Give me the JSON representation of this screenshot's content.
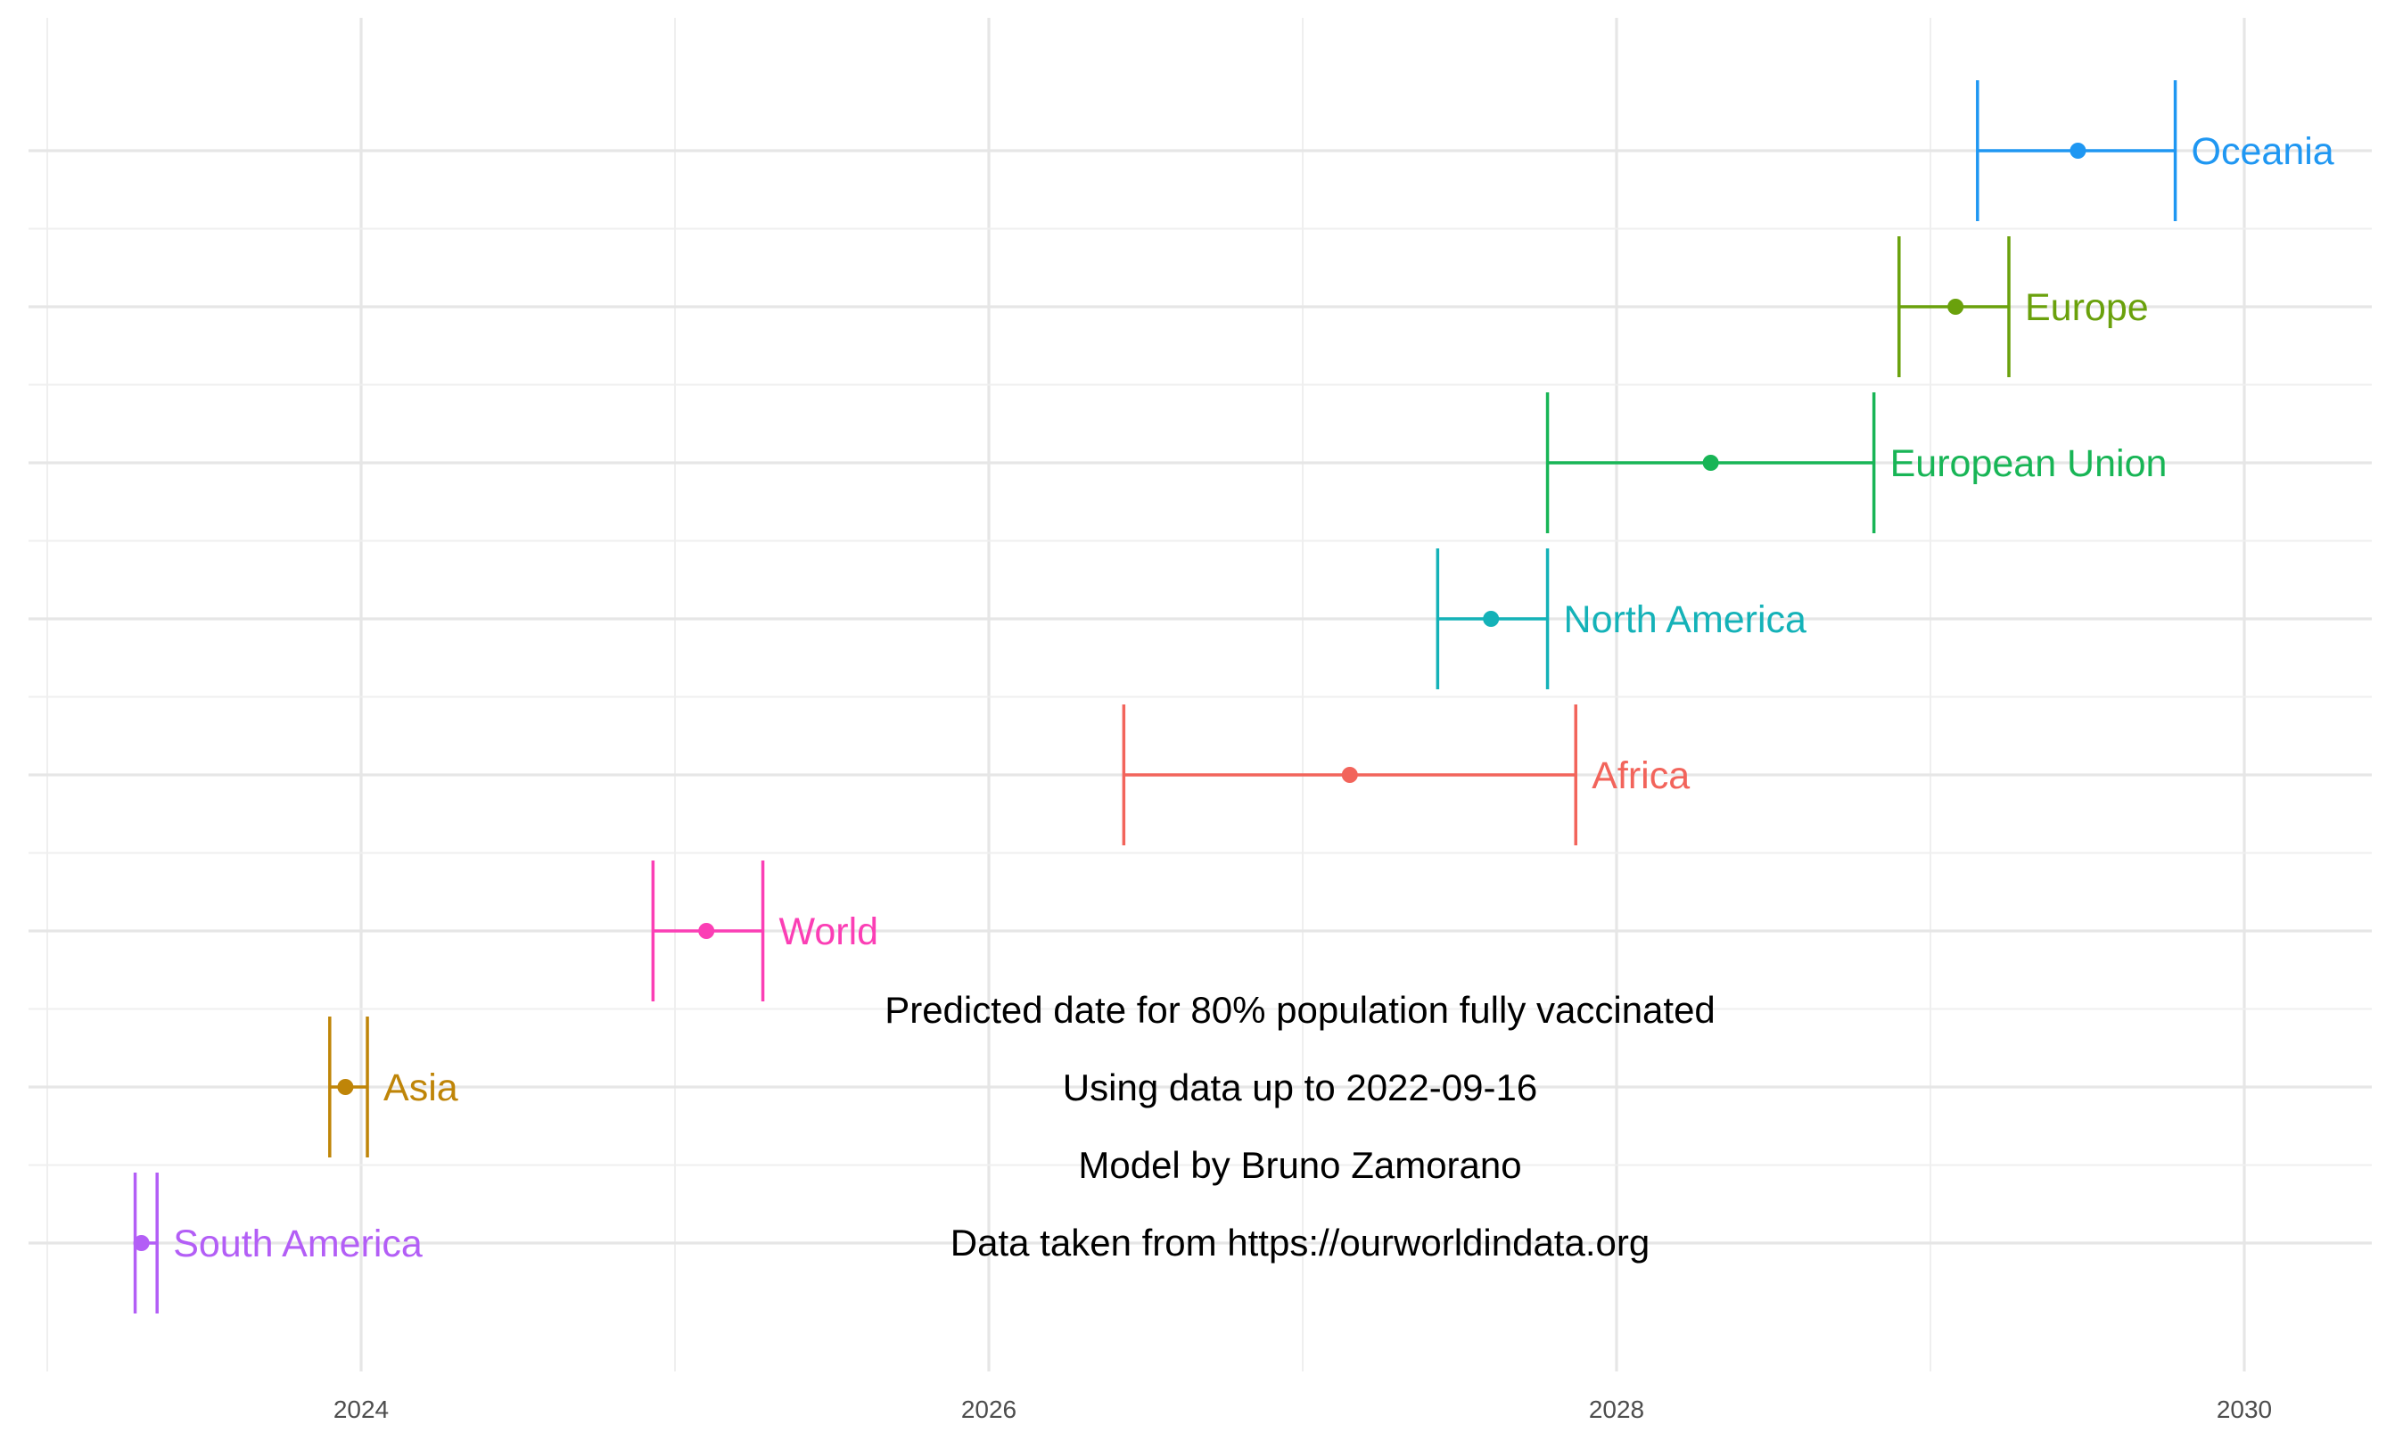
{
  "chart_data": {
    "type": "errorbar",
    "title": "",
    "xlabel": "",
    "ylabel": "",
    "xlim": [
      2023.0,
      2030.5
    ],
    "x_ticks": [
      "2024",
      "2026",
      "2028",
      "2030"
    ],
    "grid": true,
    "legend": "none",
    "series": [
      {
        "name": "Oceania",
        "color": "#1f97f2",
        "estimate": 2029.47,
        "low": 2029.15,
        "high": 2029.78
      },
      {
        "name": "Europe",
        "color": "#6aa10c",
        "estimate": 2029.08,
        "low": 2028.9,
        "high": 2029.25
      },
      {
        "name": "European Union",
        "color": "#18b556",
        "estimate": 2028.3,
        "low": 2027.78,
        "high": 2028.82
      },
      {
        "name": "North America",
        "color": "#14b2b8",
        "estimate": 2027.6,
        "low": 2027.43,
        "high": 2027.78
      },
      {
        "name": "Africa",
        "color": "#f2645b",
        "estimate": 2027.15,
        "low": 2026.43,
        "high": 2027.87
      },
      {
        "name": "World",
        "color": "#fb3fb5",
        "estimate": 2025.1,
        "low": 2024.93,
        "high": 2025.28
      },
      {
        "name": "Asia",
        "color": "#bf8508",
        "estimate": 2023.95,
        "low": 2023.9,
        "high": 2024.02
      },
      {
        "name": "South America",
        "color": "#b35ef6",
        "estimate": 2023.3,
        "low": 2023.28,
        "high": 2023.35
      }
    ],
    "annotations": [
      "Predicted date for 80% population fully vaccinated",
      "Using data up to 2022-09-16",
      "Model by Bruno Zamorano",
      "Data taken from https://ourworldindata.org"
    ]
  }
}
